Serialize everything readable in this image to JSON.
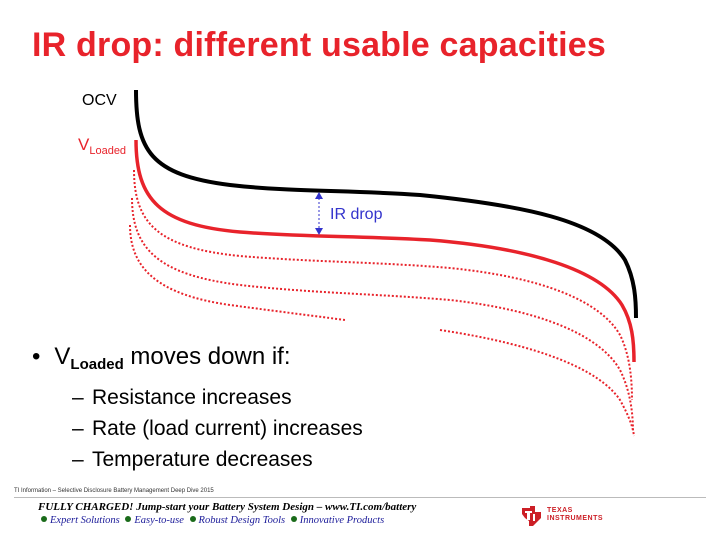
{
  "slide": {
    "title": "IR drop: different usable capacities"
  },
  "diagram": {
    "ocv_label": "OCV",
    "vloaded_label_main": "V",
    "vloaded_label_sub": "Loaded",
    "ir_drop_label": "IR drop",
    "colors": {
      "ocv": "#000000",
      "loaded": "#e8232b",
      "annotation": "#3333cc"
    }
  },
  "bullets": {
    "main_symbol": "•",
    "main_prefix": "V",
    "main_sub": "Loaded",
    "main_suffix": " moves down if:",
    "items": [
      {
        "dash": "–",
        "text": "Resistance increases"
      },
      {
        "dash": "–",
        "text": "Rate (load current) increases"
      },
      {
        "dash": "–",
        "text": "Temperature decreases"
      }
    ]
  },
  "footer": {
    "footnote": "TI Information – Selective Disclosure  Battery Management Deep Dive 2015",
    "line1": "FULLY CHARGED! Jump-start your Battery System Design – www.TI.com/battery",
    "taglines": [
      "Expert Solutions",
      "Easy-to-use",
      "Robust Design Tools",
      "Innovative Products"
    ],
    "logo_lines": [
      "TEXAS",
      "INSTRUMENTS"
    ],
    "brand_color": "#cc1f26"
  }
}
